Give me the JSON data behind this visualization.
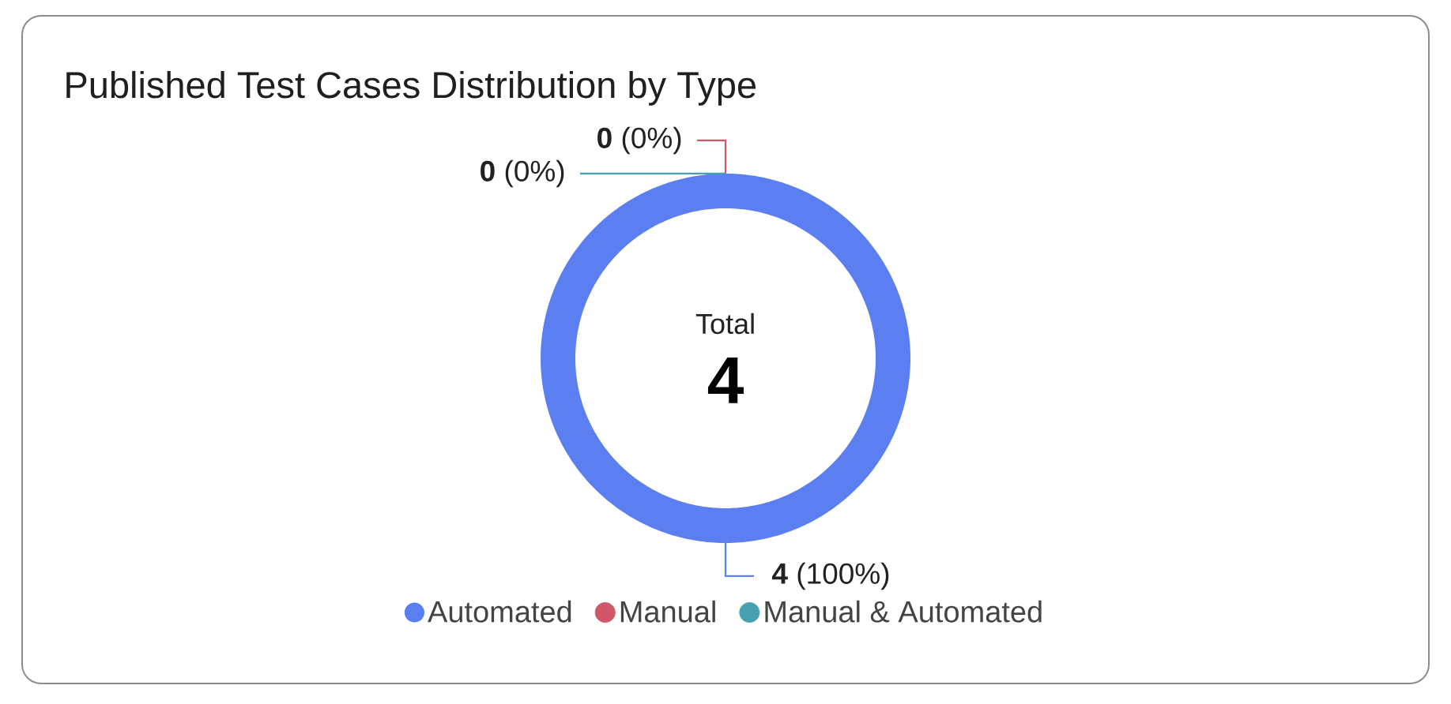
{
  "chart_data": {
    "type": "donut",
    "title": "Published Test Cases Distribution by Type",
    "categories": [
      "Automated",
      "Manual",
      "Manual & Automated"
    ],
    "values": [
      4,
      0,
      0
    ],
    "colors": [
      "#5b7ff0",
      "#d1566a",
      "#45a0b2"
    ],
    "value_labels": [
      "**4** (100%)",
      "**0** (0%)",
      "**0** (0%)"
    ],
    "annotations": [
      "Total",
      "4"
    ],
    "legend": "bottom"
  }
}
